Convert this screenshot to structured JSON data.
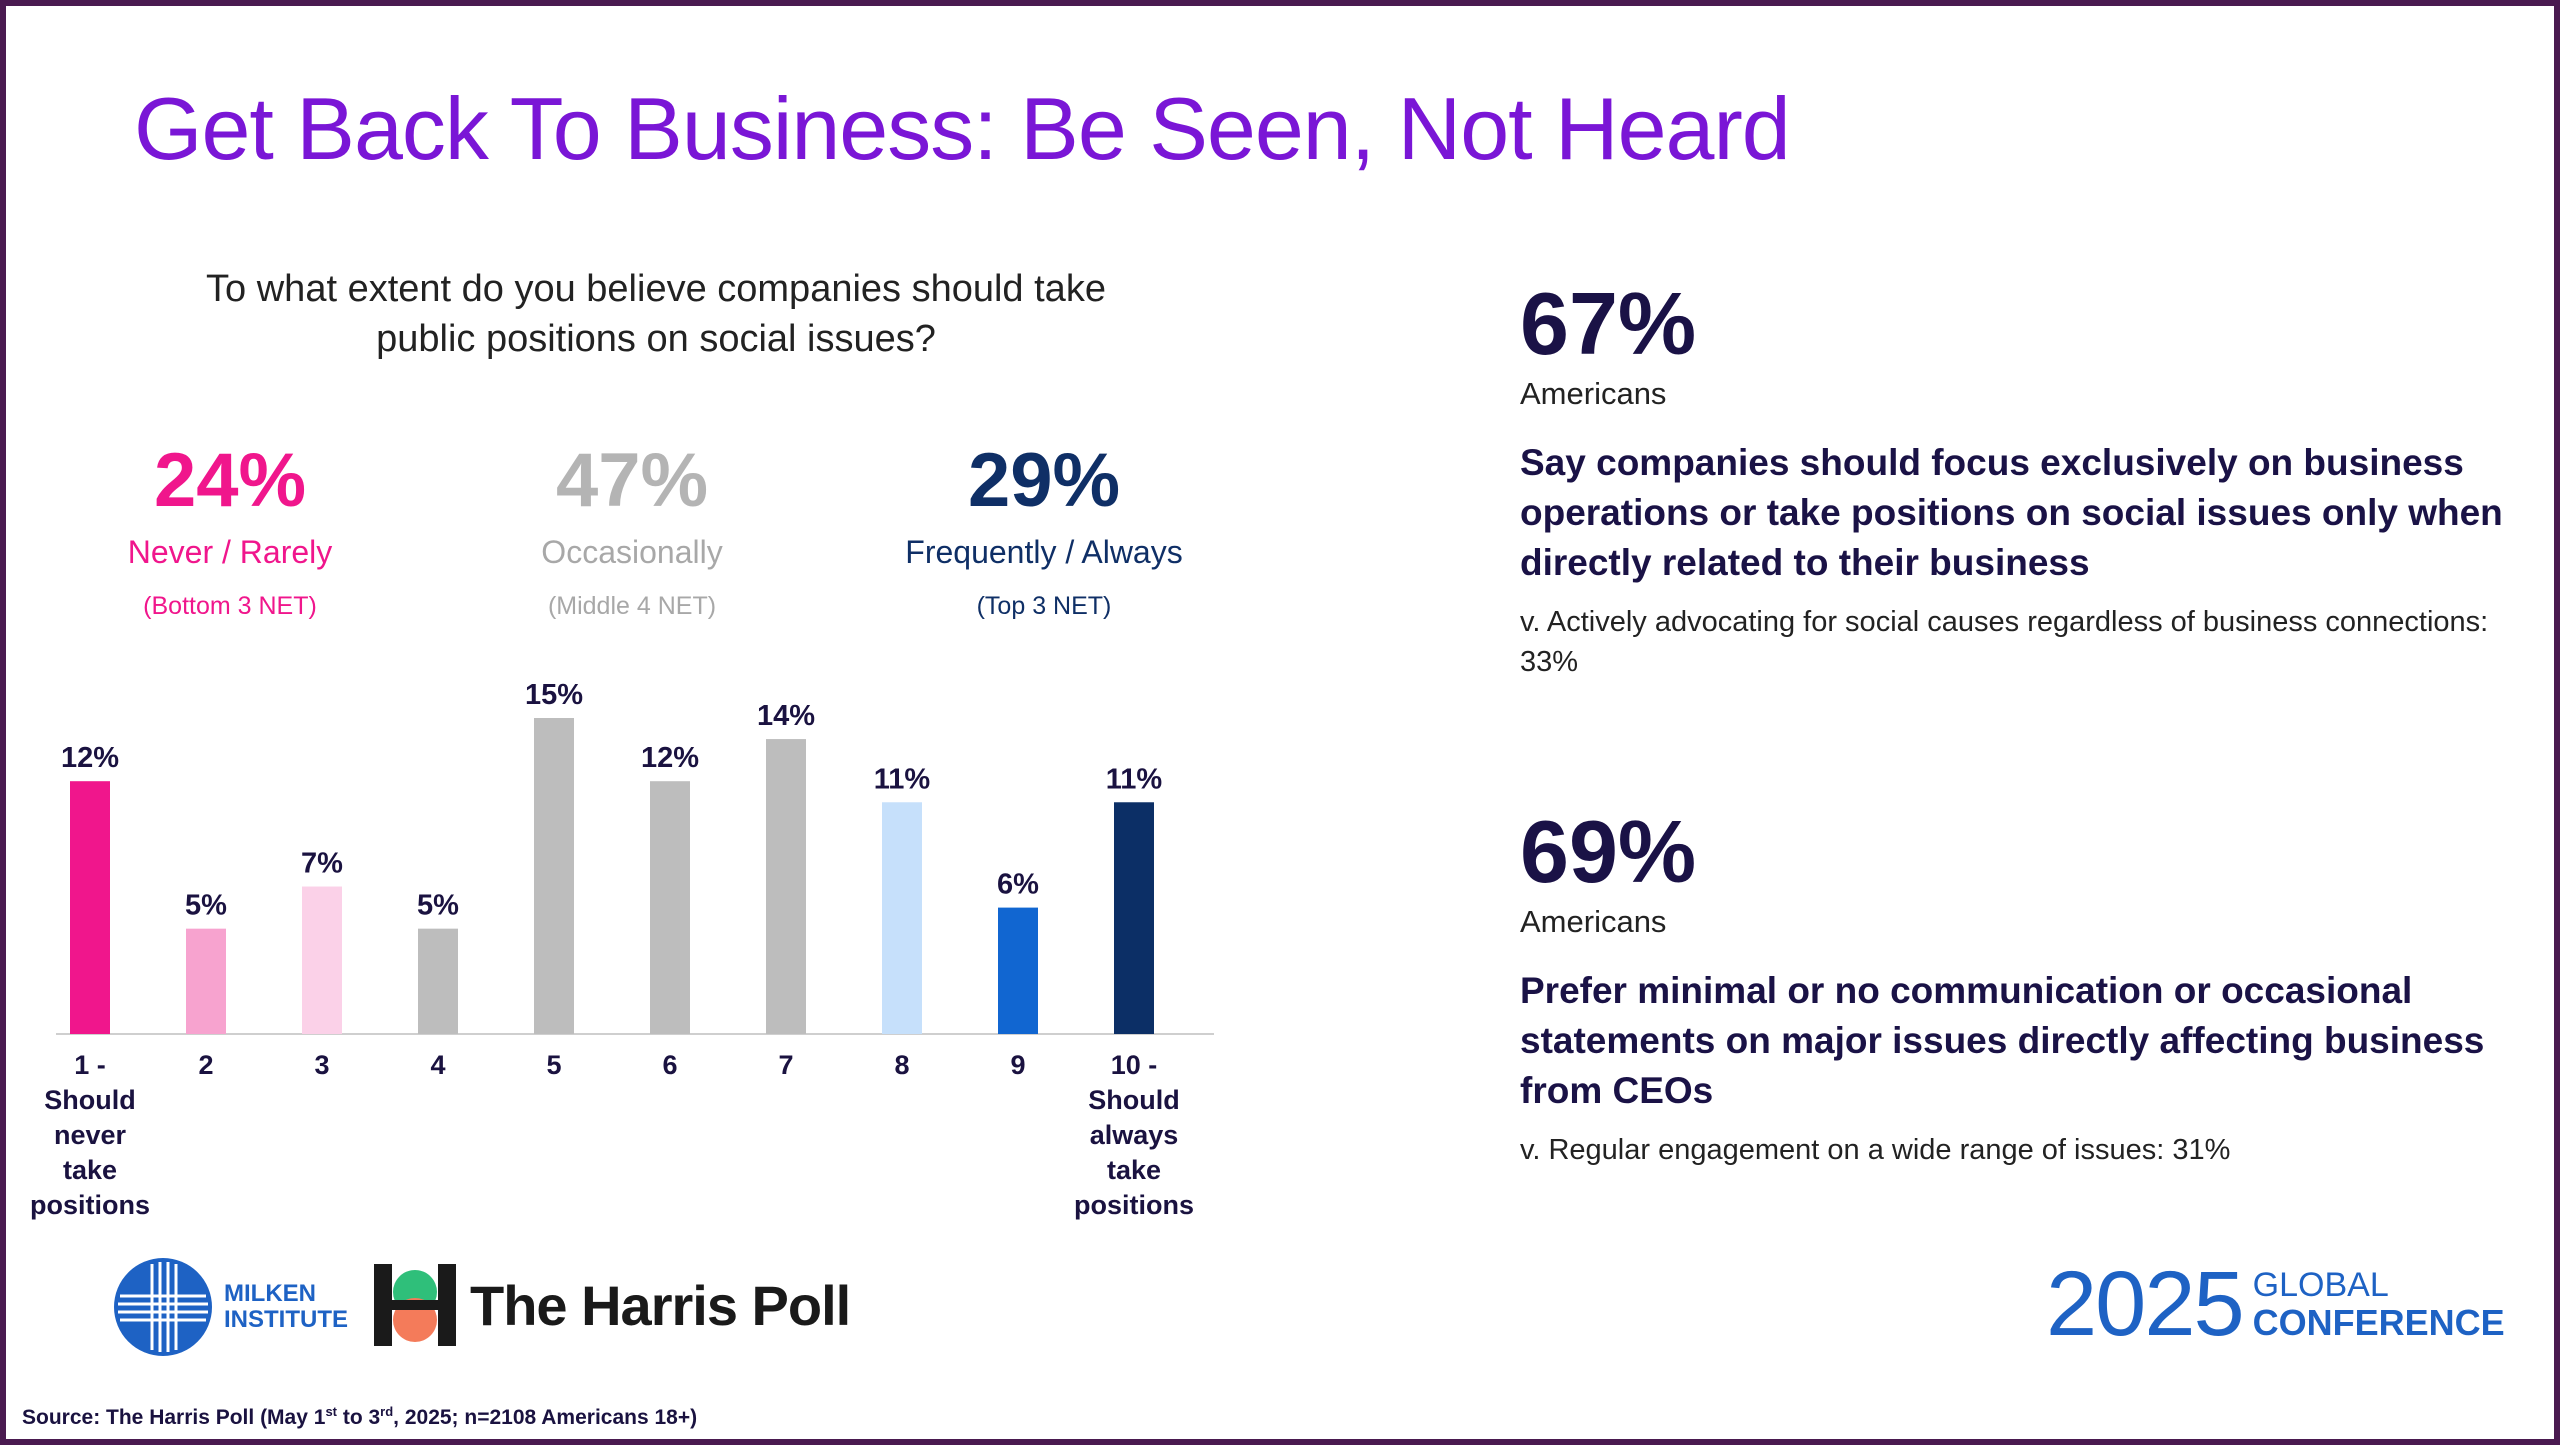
{
  "title": "Get Back To Business: Be Seen, Not Heard",
  "question": "To what extent do you believe companies should take public positions on social issues?",
  "nets": [
    {
      "pct": "24%",
      "label": "Never / Rarely",
      "sub": "(Bottom 3 NET)",
      "color": "#f0168c",
      "subcolor": "#f0168c"
    },
    {
      "pct": "47%",
      "label": "Occasionally",
      "sub": "(Middle 4 NET)",
      "color": "#b4b4b4",
      "subcolor": "#a0a0a0"
    },
    {
      "pct": "29%",
      "label": "Frequently / Always",
      "sub": "(Top 3 NET)",
      "color": "#0f2f66",
      "subcolor": "#0f2f66"
    }
  ],
  "chart_data": {
    "type": "bar",
    "categories": [
      "1 - Should never take positions",
      "2",
      "3",
      "4",
      "5",
      "6",
      "7",
      "8",
      "9",
      "10 - Should always take positions"
    ],
    "values": [
      12,
      5,
      7,
      5,
      15,
      12,
      14,
      11,
      6,
      11
    ],
    "data_labels": [
      "12%",
      "5%",
      "7%",
      "5%",
      "15%",
      "12%",
      "14%",
      "11%",
      "6%",
      "11%"
    ],
    "colors": [
      "#f0168c",
      "#f7a3cf",
      "#fbd1e8",
      "#bdbdbd",
      "#bdbdbd",
      "#bdbdbd",
      "#bdbdbd",
      "#c6e0fb",
      "#1166d1",
      "#0c2f66"
    ],
    "ylim": [
      0,
      15
    ],
    "title": "",
    "xlabel": "",
    "ylabel": ""
  },
  "stats": [
    {
      "big": "67%",
      "who": "Americans",
      "head": "Say companies should focus exclusively on business operations or take positions on social issues only when directly related to their business",
      "vs": "v. Actively advocating for social causes regardless of business connections: 33%"
    },
    {
      "big": "69%",
      "who": "Americans",
      "head": "Prefer minimal or no communication or occasional statements on major issues directly affecting business from CEOs",
      "vs": "v. Regular engagement on a wide range of issues: 31%"
    }
  ],
  "logos": {
    "milken": "MILKEN INSTITUTE",
    "harris": "The Harris Poll",
    "conf_year": "2025",
    "conf_word1": "GLOBAL",
    "conf_word2": "CONFERENCE"
  },
  "source": {
    "pre": "Source: The Harris Poll (May 1",
    "sup1": "st",
    "mid": " to 3",
    "sup2": "rd",
    "post": ", 2025; n=2108 Americans 18+)"
  }
}
